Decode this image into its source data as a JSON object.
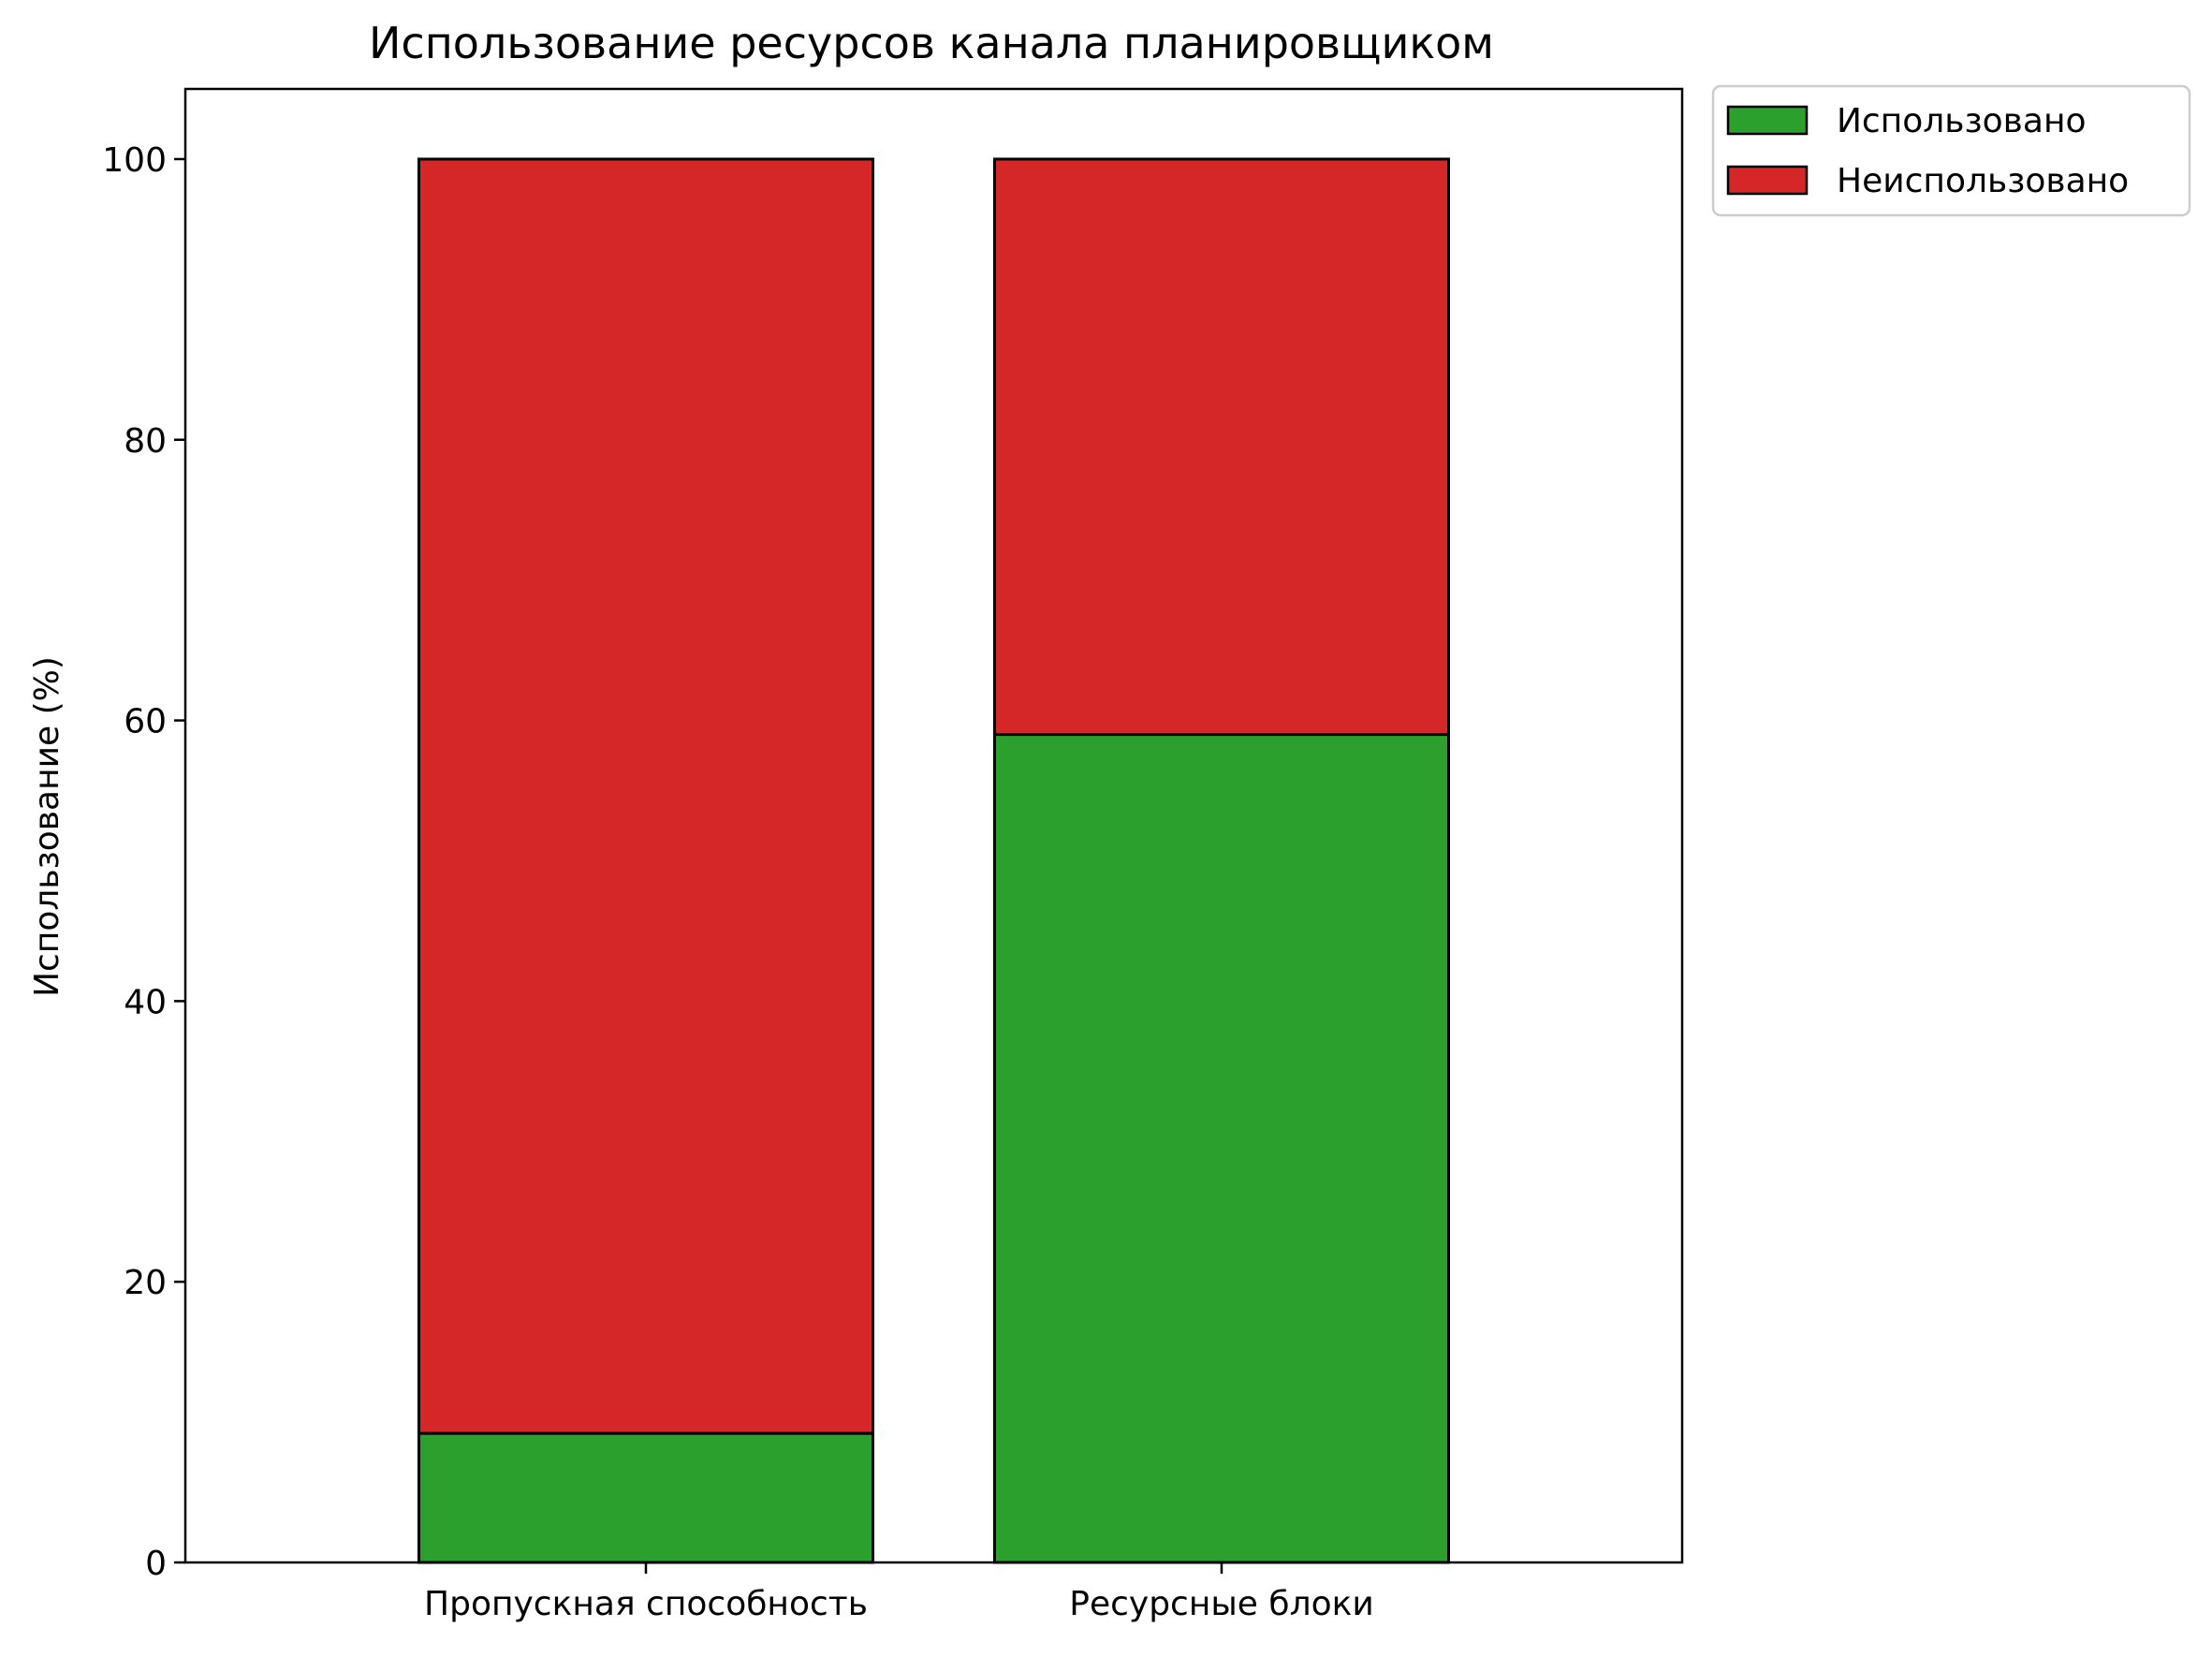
{
  "chart_data": {
    "type": "bar",
    "stacked": true,
    "title": "Использование ресурсов канала планировщиком",
    "xlabel": "",
    "ylabel": "Использование (%)",
    "categories": [
      "Пропускная способность",
      "Ресурсные блоки"
    ],
    "series": [
      {
        "name": "Использовано",
        "values": [
          9.2,
          59.0
        ],
        "color": "#2ca02c"
      },
      {
        "name": "Неиспользовано",
        "values": [
          90.8,
          41.0
        ],
        "color": "#d62728"
      }
    ],
    "ylim": [
      0,
      105
    ],
    "yticks": [
      0,
      20,
      40,
      60,
      80,
      100
    ],
    "ytick_labels": [
      "0",
      "20",
      "40",
      "60",
      "80",
      "100"
    ],
    "grid": false,
    "legend": {
      "placement": "outside-top-right"
    }
  }
}
